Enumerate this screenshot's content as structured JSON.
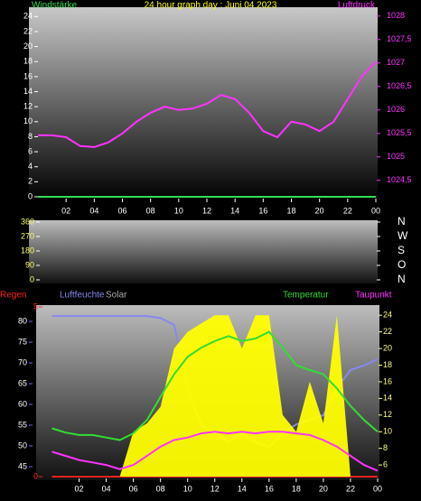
{
  "chart_data": [
    {
      "type": "line",
      "title": "24 hour graph day : Juni 04 2023",
      "x": [
        0,
        1,
        2,
        3,
        4,
        5,
        6,
        7,
        8,
        9,
        10,
        11,
        12,
        13,
        14,
        15,
        16,
        17,
        18,
        19,
        20,
        21,
        22,
        23,
        24
      ],
      "xlim": [
        0,
        24
      ],
      "xticks": [
        {
          "value": 2,
          "label": "02"
        },
        {
          "value": 4,
          "label": "04"
        },
        {
          "value": 6,
          "label": "06"
        },
        {
          "value": 8,
          "label": "08"
        },
        10,
        12,
        14,
        16,
        18,
        20,
        22,
        {
          "value": 24,
          "label": "00"
        }
      ],
      "ylim": [
        0,
        25
      ],
      "yticks": [
        0,
        2,
        4,
        6,
        8,
        10,
        12,
        14,
        16,
        18,
        20,
        22,
        24
      ],
      "y2lim": [
        1024.15,
        1028.15
      ],
      "y2ticks": [
        {
          "value": 1024.5,
          "label": "1024,5"
        },
        1025,
        {
          "value": 1025.5,
          "label": "1025,5"
        },
        1026,
        {
          "value": 1026.5,
          "label": "1026,5"
        },
        1027,
        {
          "value": 1027.5,
          "label": "1027,5"
        },
        1028
      ],
      "series": [
        {
          "name": "Windstärke",
          "color": "#33dd55",
          "values": [
            0,
            0,
            0,
            0,
            0,
            0,
            0,
            0,
            0,
            0,
            0,
            0,
            0,
            0,
            0,
            0,
            0,
            0,
            0,
            0,
            0,
            0,
            0,
            0,
            0
          ]
        },
        {
          "name": "Luftdruck",
          "color": "#ff33ff",
          "axis": "y2",
          "values": [
            1025.46,
            1025.46,
            1025.42,
            1025.23,
            1025.21,
            1025.31,
            1025.5,
            1025.75,
            1025.94,
            1026.07,
            1026.0,
            1026.03,
            1026.13,
            1026.32,
            1026.23,
            1025.94,
            1025.55,
            1025.42,
            1025.75,
            1025.69,
            1025.55,
            1025.75,
            1026.23,
            1026.71,
            1027.03
          ]
        }
      ]
    },
    {
      "type": "line",
      "xlim": [
        0,
        24
      ],
      "ylim": [
        0,
        360
      ],
      "yticks": [
        0,
        90,
        180,
        270,
        360
      ],
      "y2lim": [
        0,
        360
      ],
      "y2ticks": [
        {
          "value": 0,
          "label": "N"
        },
        {
          "value": 90,
          "label": "O"
        },
        {
          "value": 180,
          "label": "S"
        },
        {
          "value": 270,
          "label": "W"
        },
        {
          "value": 360,
          "label": "N"
        }
      ]
    },
    {
      "type": "line",
      "x": [
        0,
        1,
        2,
        3,
        4,
        5,
        6,
        7,
        8,
        9,
        10,
        11,
        12,
        13,
        14,
        15,
        16,
        17,
        18,
        19,
        20,
        21,
        22,
        23,
        24
      ],
      "xlim": [
        -0.5,
        24
      ],
      "xticks": [
        {
          "value": 2,
          "label": "02"
        },
        {
          "value": 4,
          "label": "04"
        },
        {
          "value": 6,
          "label": "06"
        },
        {
          "value": 8,
          "label": "08"
        },
        10,
        12,
        14,
        16,
        18,
        20,
        22,
        {
          "value": 24,
          "label": "00"
        }
      ],
      "ylim": [
        42.6,
        83.5
      ],
      "yticks": [
        45,
        50,
        55,
        60,
        65,
        70,
        75,
        80
      ],
      "y2lim": [
        4.6,
        25
      ],
      "y2ticks": [
        6,
        8,
        10,
        12,
        14,
        16,
        18,
        20,
        22,
        24
      ],
      "y3lim": [
        0,
        5
      ],
      "y3ticks": [
        0,
        5
      ],
      "series": [
        {
          "name": "Regen",
          "color": "#ff2222",
          "axis": "y3",
          "values": [
            0,
            0,
            0,
            0,
            0,
            0,
            0,
            0,
            0,
            0,
            0,
            0,
            0,
            0,
            0,
            0,
            0,
            0,
            0,
            0,
            0,
            0,
            0,
            0,
            0
          ]
        },
        {
          "name": "Luftfeuchte",
          "color": "#8888ee",
          "values": [
            81.3,
            81.3,
            81.3,
            81.3,
            81.3,
            81.3,
            81.3,
            81.3,
            80.8,
            79.2,
            63.9,
            55.2,
            53,
            50.9,
            53,
            50.9,
            49.8,
            53,
            55.2,
            56.3,
            57.4,
            63.9,
            68.3,
            69.4,
            70.9
          ]
        },
        {
          "name": "Solar",
          "color": "#ffff00",
          "axis": "y2",
          "area": true,
          "values": [
            4.6,
            4.6,
            4.6,
            4.6,
            4.6,
            4.6,
            10,
            11,
            13,
            20,
            22,
            23,
            24,
            24,
            20,
            24,
            24,
            12,
            10,
            16,
            11,
            24,
            4.6,
            4.6,
            4.6
          ]
        },
        {
          "name": "Temperatur",
          "color": "#33dd33",
          "axis": "y2",
          "values": [
            10.4,
            9.9,
            9.6,
            9.6,
            9.3,
            9.0,
            9.8,
            11.4,
            14.2,
            16.9,
            19.0,
            20.1,
            20.9,
            21.5,
            20.9,
            21.2,
            22.0,
            20.1,
            18.0,
            17.4,
            16.9,
            15.2,
            13.1,
            11.4,
            10.0
          ]
        },
        {
          "name": "Taupunkt",
          "color": "#ff33ff",
          "axis": "y2",
          "values": [
            7.6,
            7.1,
            6.6,
            6.3,
            6.0,
            5.5,
            6.0,
            7.1,
            8.2,
            9.0,
            9.3,
            9.8,
            10.0,
            9.8,
            10.0,
            9.8,
            10.0,
            10.0,
            9.8,
            9.6,
            9.0,
            8.2,
            7.1,
            6.0,
            5.3
          ]
        }
      ]
    }
  ]
}
